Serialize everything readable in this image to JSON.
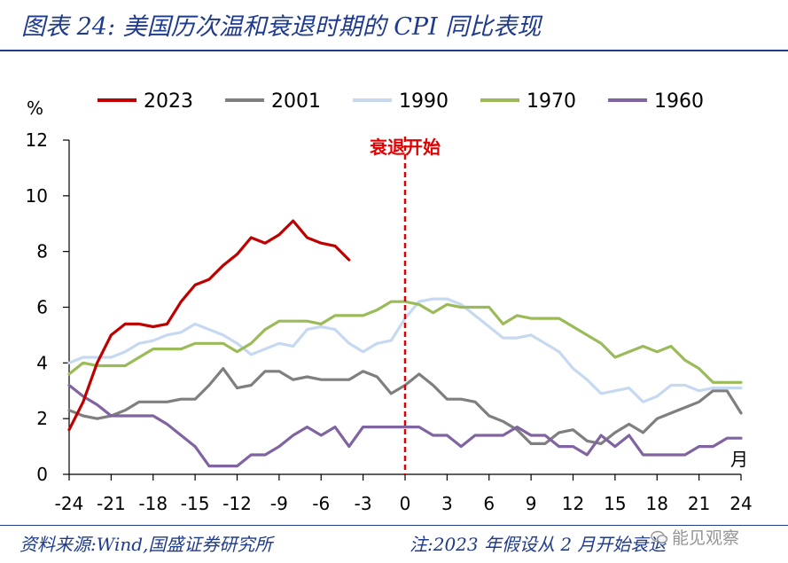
{
  "header": {
    "title": "图表 24:  美国历次温和衰退时期的 CPI 同比表现"
  },
  "footer": {
    "source": "资料来源:Wind,国盛证券研究所",
    "note": "注:2023 年假设从 2 月开始衰退",
    "watermark": "能见观察"
  },
  "chart_data": {
    "type": "line",
    "title": "美国历次温和衰退时期的 CPI 同比表现",
    "ylabel": "%",
    "xlabel": "月",
    "ylim": [
      0,
      12
    ],
    "xlim": [
      -24,
      24
    ],
    "yticks": [
      0,
      2,
      4,
      6,
      8,
      10,
      12
    ],
    "xticks": [
      -24,
      -21,
      -18,
      -15,
      -12,
      -9,
      -6,
      -3,
      0,
      3,
      6,
      9,
      12,
      15,
      18,
      21,
      24
    ],
    "legend_position": "top",
    "annotation": {
      "text": "衰退开始",
      "x": 0,
      "color": "#e00000"
    },
    "series": [
      {
        "name": "2023",
        "color": "#c00000",
        "x_start": -24,
        "values": [
          1.6,
          2.6,
          4.0,
          5.0,
          5.4,
          5.4,
          5.3,
          5.4,
          6.2,
          6.8,
          7.0,
          7.5,
          7.9,
          8.5,
          8.3,
          8.6,
          9.1,
          8.5,
          8.3,
          8.2,
          7.7
        ]
      },
      {
        "name": "2001",
        "color": "#7f7f7f",
        "x_start": -24,
        "values": [
          2.3,
          2.1,
          2.0,
          2.1,
          2.3,
          2.6,
          2.6,
          2.6,
          2.7,
          2.7,
          3.2,
          3.8,
          3.1,
          3.2,
          3.7,
          3.7,
          3.4,
          3.5,
          3.4,
          3.4,
          3.4,
          3.7,
          3.5,
          2.9,
          3.2,
          3.6,
          3.2,
          2.7,
          2.7,
          2.6,
          2.1,
          1.9,
          1.6,
          1.1,
          1.1,
          1.5,
          1.6,
          1.2,
          1.1,
          1.5,
          1.8,
          1.5,
          2.0,
          2.2,
          2.4,
          2.6,
          3.0,
          3.0,
          2.2
        ]
      },
      {
        "name": "1990",
        "color": "#c6d9f1",
        "x_start": -24,
        "values": [
          4.0,
          4.2,
          4.2,
          4.2,
          4.4,
          4.7,
          4.8,
          5.0,
          5.1,
          5.4,
          5.2,
          5.0,
          4.7,
          4.3,
          4.5,
          4.7,
          4.6,
          5.2,
          5.3,
          5.2,
          4.7,
          4.4,
          4.7,
          4.8,
          5.6,
          6.2,
          6.3,
          6.3,
          6.1,
          5.7,
          5.3,
          4.9,
          4.9,
          5.0,
          4.7,
          4.4,
          3.8,
          3.4,
          2.9,
          3.0,
          3.1,
          2.6,
          2.8,
          3.2,
          3.2,
          3.0,
          3.1,
          3.1,
          3.1
        ]
      },
      {
        "name": "1970",
        "color": "#9bbb59",
        "x_start": -24,
        "values": [
          3.6,
          4.0,
          3.9,
          3.9,
          3.9,
          4.2,
          4.5,
          4.5,
          4.5,
          4.7,
          4.7,
          4.7,
          4.4,
          4.7,
          5.2,
          5.5,
          5.5,
          5.5,
          5.4,
          5.7,
          5.7,
          5.7,
          5.9,
          6.2,
          6.2,
          6.1,
          5.8,
          6.1,
          6.0,
          6.0,
          6.0,
          5.4,
          5.7,
          5.6,
          5.6,
          5.6,
          5.3,
          5.0,
          4.7,
          4.2,
          4.4,
          4.6,
          4.4,
          4.6,
          4.1,
          3.8,
          3.3,
          3.3,
          3.3
        ]
      },
      {
        "name": "1960",
        "color": "#8064a2",
        "x_start": -24,
        "values": [
          3.2,
          2.8,
          2.5,
          2.1,
          2.1,
          2.1,
          2.1,
          1.8,
          1.4,
          1.0,
          0.3,
          0.3,
          0.3,
          0.7,
          0.7,
          1.0,
          1.4,
          1.7,
          1.4,
          1.7,
          1.0,
          1.7,
          1.7,
          1.7,
          1.7,
          1.7,
          1.4,
          1.4,
          1.0,
          1.4,
          1.4,
          1.4,
          1.7,
          1.4,
          1.4,
          1.0,
          1.0,
          0.7,
          1.4,
          1.0,
          1.4,
          0.7,
          0.7,
          0.7,
          0.7,
          1.0,
          1.0,
          1.3,
          1.3
        ]
      }
    ]
  }
}
